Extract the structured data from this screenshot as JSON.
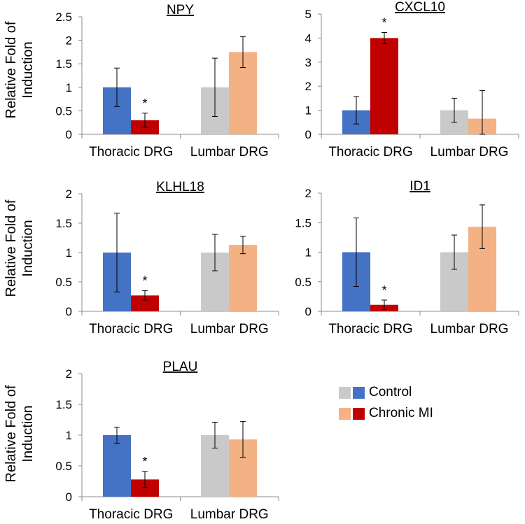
{
  "colors": {
    "thoracic_control": "#4472c4",
    "thoracic_mi": "#c00000",
    "lumbar_control": "#c9c9c9",
    "lumbar_mi": "#f4b183",
    "axis": "#8c8c8c"
  },
  "legend": {
    "items": [
      {
        "label": "Control"
      },
      {
        "label": "Chronic MI"
      }
    ]
  },
  "chart_data": [
    {
      "type": "bar",
      "title": "NPY",
      "ylabel": "Relative Fold of Induction",
      "ylim": [
        0,
        2.5
      ],
      "yticks": [
        "0",
        "0.5",
        "1",
        "1.5",
        "2",
        "2.5"
      ],
      "categories": [
        "Thoracic DRG",
        "Lumbar DRG"
      ],
      "series": [
        {
          "name": "Control",
          "values": [
            1.0,
            1.0
          ],
          "errors": [
            0.41,
            0.62
          ]
        },
        {
          "name": "Chronic MI",
          "values": [
            0.3,
            1.75
          ],
          "errors": [
            0.15,
            0.33
          ]
        }
      ],
      "annotations": [
        {
          "text": "*",
          "category": 0,
          "series": 1
        }
      ]
    },
    {
      "type": "bar",
      "title": "CXCL10",
      "ylabel": "",
      "ylim": [
        0,
        5
      ],
      "yticks": [
        "0",
        "1",
        "2",
        "3",
        "4",
        "5"
      ],
      "categories": [
        "Thoracic DRG",
        "Lumbar DRG"
      ],
      "series": [
        {
          "name": "Control",
          "values": [
            1.0,
            1.0
          ],
          "errors": [
            0.57,
            0.5
          ]
        },
        {
          "name": "Chronic MI",
          "values": [
            4.0,
            0.65
          ],
          "errors": [
            0.23,
            1.17
          ]
        }
      ],
      "annotations": [
        {
          "text": "*",
          "category": 0,
          "series": 1
        }
      ]
    },
    {
      "type": "bar",
      "title": "KLHL18",
      "ylabel": "Relative Fold of Induction",
      "ylim": [
        0,
        2
      ],
      "yticks": [
        "0",
        "0.5",
        "1",
        "1.5",
        "2"
      ],
      "categories": [
        "Thoracic DRG",
        "Lumbar DRG"
      ],
      "series": [
        {
          "name": "Control",
          "values": [
            1.0,
            1.0
          ],
          "errors": [
            0.67,
            0.31
          ]
        },
        {
          "name": "Chronic MI",
          "values": [
            0.27,
            1.13
          ],
          "errors": [
            0.08,
            0.15
          ]
        }
      ],
      "annotations": [
        {
          "text": "*",
          "category": 0,
          "series": 1
        }
      ]
    },
    {
      "type": "bar",
      "title": "ID1",
      "ylabel": "",
      "ylim": [
        0,
        2
      ],
      "yticks": [
        "0",
        "0.5",
        "1",
        "1.5",
        "2"
      ],
      "categories": [
        "Thoracic DRG",
        "Lumbar DRG"
      ],
      "series": [
        {
          "name": "Control",
          "values": [
            1.0,
            1.0
          ],
          "errors": [
            0.58,
            0.29
          ]
        },
        {
          "name": "Chronic MI",
          "values": [
            0.11,
            1.43
          ],
          "errors": [
            0.08,
            0.37
          ]
        }
      ],
      "annotations": [
        {
          "text": "*",
          "category": 0,
          "series": 1
        }
      ]
    },
    {
      "type": "bar",
      "title": "PLAU",
      "ylabel": "Relative Fold of Induction",
      "ylim": [
        0,
        2
      ],
      "yticks": [
        "0",
        "0.5",
        "1",
        "1.5",
        "2"
      ],
      "categories": [
        "Thoracic DRG",
        "Lumbar DRG"
      ],
      "series": [
        {
          "name": "Control",
          "values": [
            1.0,
            1.0
          ],
          "errors": [
            0.13,
            0.21
          ]
        },
        {
          "name": "Chronic MI",
          "values": [
            0.28,
            0.93
          ],
          "errors": [
            0.13,
            0.29
          ]
        }
      ],
      "annotations": [
        {
          "text": "*",
          "category": 0,
          "series": 1
        }
      ]
    }
  ]
}
